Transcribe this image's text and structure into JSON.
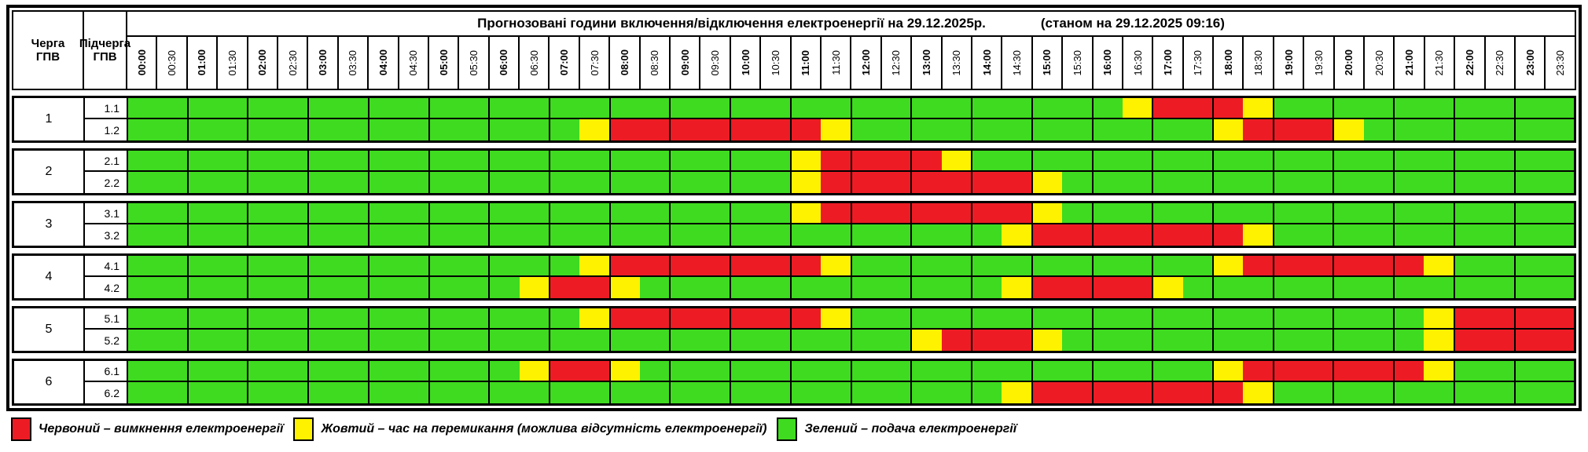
{
  "title": {
    "main": "Прогнозовані години включення/відключення електроенергії на 29.12.2025р.",
    "status": "(станом на 29.12.2025 09:16)"
  },
  "corner": {
    "queue": "Черга\nГПВ",
    "subqueue": "Підчерга\nГПВ"
  },
  "times": [
    "00:00",
    "00:30",
    "01:00",
    "01:30",
    "02:00",
    "02:30",
    "03:00",
    "03:30",
    "04:00",
    "04:30",
    "05:00",
    "05:30",
    "06:00",
    "06:30",
    "07:00",
    "07:30",
    "08:00",
    "08:30",
    "09:00",
    "09:30",
    "10:00",
    "10:30",
    "11:00",
    "11:30",
    "12:00",
    "12:30",
    "13:00",
    "13:30",
    "14:00",
    "14:30",
    "15:00",
    "15:30",
    "16:00",
    "16:30",
    "17:00",
    "17:30",
    "18:00",
    "18:30",
    "19:00",
    "19:30",
    "20:00",
    "20:30",
    "21:00",
    "21:30",
    "22:00",
    "22:30",
    "23:00",
    "23:30"
  ],
  "colors": {
    "G": "#3FDB20",
    "Y": "#FFF200",
    "R": "#ED1C24"
  },
  "groups": [
    {
      "queue": "1",
      "rows": [
        {
          "label": "1.1",
          "cells": "GGGGGGGGGGGGGGGGGGGGGGGGGGGGGGGGGYRRRYGGGGGGGGGG"
        },
        {
          "label": "1.2",
          "cells": "GGGGGGGGGGGGGGGYRRRRRRRYGGGGGGGGGGGGYRRRYGGGGGGG"
        }
      ]
    },
    {
      "queue": "2",
      "rows": [
        {
          "label": "2.1",
          "cells": "GGGGGGGGGGGGGGGGGGGGGGYRRRRYGGGGGGGGGGGGGGGGGGGG"
        },
        {
          "label": "2.2",
          "cells": "GGGGGGGGGGGGGGGGGGGGGGYRRRRRRRYGGGGGGGGGGGGGGGGG"
        }
      ]
    },
    {
      "queue": "3",
      "rows": [
        {
          "label": "3.1",
          "cells": "GGGGGGGGGGGGGGGGGGGGGGYRRRRRRRYGGGGGGGGGGGGGGGGG"
        },
        {
          "label": "3.2",
          "cells": "GGGGGGGGGGGGGGGGGGGGGGGGGGGGGYRRRRRRRYGGGGGGGGGG"
        }
      ]
    },
    {
      "queue": "4",
      "rows": [
        {
          "label": "4.1",
          "cells": "GGGGGGGGGGGGGGGYRRRRRRRYGGGGGGGGGGGGYRRRRRRYGGGG"
        },
        {
          "label": "4.2",
          "cells": "GGGGGGGGGGGGGYRRYGGGGGGGGGGGGYRRRRYGGGGGGGGGGGGG"
        }
      ]
    },
    {
      "queue": "5",
      "rows": [
        {
          "label": "5.1",
          "cells": "GGGGGGGGGGGGGGGYRRRRRRRYGGGGGGGGGGGGGGGGGGGYRRRR"
        },
        {
          "label": "5.2",
          "cells": "GGGGGGGGGGGGGGGGGGGGGGGGGGYRRRYGGGGGGGGGGGGYRRRR"
        }
      ]
    },
    {
      "queue": "6",
      "rows": [
        {
          "label": "6.1",
          "cells": "GGGGGGGGGGGGGYRRYGGGGGGGGGGGGGGGGGGGYRRRRRRYGGGG"
        },
        {
          "label": "6.2",
          "cells": "GGGGGGGGGGGGGGGGGGGGGGGGGGGGGYRRRRRRRYGGGGGGGGGG"
        }
      ]
    }
  ],
  "legend": [
    {
      "key": "R",
      "color": "#ED1C24",
      "label": "Червоний – вимкнення електроенергії"
    },
    {
      "key": "Y",
      "color": "#FFF200",
      "label": "Жовтий – час на перемикання (можлива відсутність електроенергії)"
    },
    {
      "key": "G",
      "color": "#3FDB20",
      "label": "Зелений – подача електроенергії"
    }
  ],
  "chart_data": {
    "type": "heatmap",
    "title": "Прогнозовані години включення/відключення електроенергії на 29.12.2025р. (станом на 29.12.2025 09:16)",
    "x_categories": [
      "00:00",
      "00:30",
      "01:00",
      "01:30",
      "02:00",
      "02:30",
      "03:00",
      "03:30",
      "04:00",
      "04:30",
      "05:00",
      "05:30",
      "06:00",
      "06:30",
      "07:00",
      "07:30",
      "08:00",
      "08:30",
      "09:00",
      "09:30",
      "10:00",
      "10:30",
      "11:00",
      "11:30",
      "12:00",
      "12:30",
      "13:00",
      "13:30",
      "14:00",
      "14:30",
      "15:00",
      "15:30",
      "16:00",
      "16:30",
      "17:00",
      "17:30",
      "18:00",
      "18:30",
      "19:00",
      "19:30",
      "20:00",
      "20:30",
      "21:00",
      "21:30",
      "22:00",
      "22:30",
      "23:00",
      "23:30"
    ],
    "y_categories": [
      "1.1",
      "1.2",
      "2.1",
      "2.2",
      "3.1",
      "3.2",
      "4.1",
      "4.2",
      "5.1",
      "5.2",
      "6.1",
      "6.2"
    ],
    "values_legend": {
      "G": "подача електроенергії",
      "Y": "час на перемикання (можлива відсутність електроенергії)",
      "R": "вимкнення електроенергії"
    },
    "rows": [
      {
        "name": "1.1",
        "values": "GGGGGGGGGGGGGGGGGGGGGGGGGGGGGGGGGYRRRYGGGGGGGGGG"
      },
      {
        "name": "1.2",
        "values": "GGGGGGGGGGGGGGGYRRRRRRRYGGGGGGGGGGGGYRRRYGGGGGGG"
      },
      {
        "name": "2.1",
        "values": "GGGGGGGGGGGGGGGGGGGGGGYRRRRYGGGGGGGGGGGGGGGGGGGG"
      },
      {
        "name": "2.2",
        "values": "GGGGGGGGGGGGGGGGGGGGGGYRRRRRRRYGGGGGGGGGGGGGGGGG"
      },
      {
        "name": "3.1",
        "values": "GGGGGGGGGGGGGGGGGGGGGGYRRRRRRRYGGGGGGGGGGGGGGGGG"
      },
      {
        "name": "3.2",
        "values": "GGGGGGGGGGGGGGGGGGGGGGGGGGGGGYRRRRRRRYGGGGGGGGGG"
      },
      {
        "name": "4.1",
        "values": "GGGGGGGGGGGGGGGYRRRRRRRYGGGGGGGGGGGGYRRRRRRYGGGG"
      },
      {
        "name": "4.2",
        "values": "GGGGGGGGGGGGGYRRYGGGGGGGGGGGGYRRRRYGGGGGGGGGGGGG"
      },
      {
        "name": "5.1",
        "values": "GGGGGGGGGGGGGGGYRRRRRRRYGGGGGGGGGGGGGGGGGGGYRRRR"
      },
      {
        "name": "5.2",
        "values": "GGGGGGGGGGGGGGGGGGGGGGGGGGYRRRYGGGGGGGGGGGGYRRRR"
      },
      {
        "name": "6.1",
        "values": "GGGGGGGGGGGGGYRRYGGGGGGGGGGGGGGGGGGGYRRRRRRYGGGG"
      },
      {
        "name": "6.2",
        "values": "GGGGGGGGGGGGGGGGGGGGGGGGGGGGGYRRRRRRRYGGGGGGGGGG"
      }
    ]
  }
}
